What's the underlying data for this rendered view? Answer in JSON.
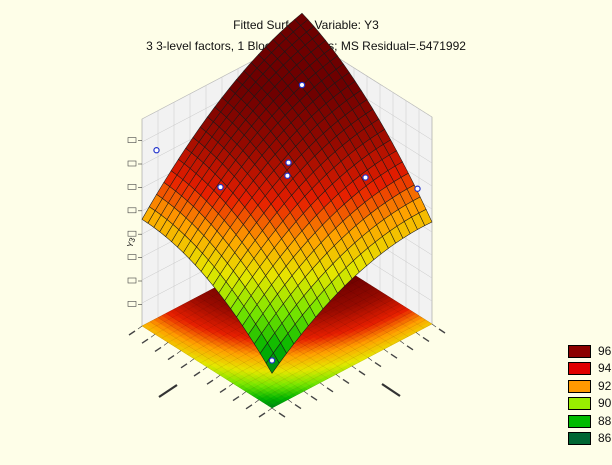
{
  "chart_data": {
    "type": "surface3d",
    "title": "Fitted Surface; Variable: Y3",
    "subtitle": "3 3-level factors, 1 Blocks, 17 Runs; MS Residual=.5471992",
    "dv_label": "DV: Y3",
    "zlabel": "Y3",
    "grid": true,
    "legend_position": "right-bottom",
    "legend": [
      {
        "label": "96",
        "color": "#8b0000"
      },
      {
        "label": "94",
        "color": "#e00000"
      },
      {
        "label": "92",
        "color": "#ff9900"
      },
      {
        "label": "90",
        "color": "#99ee00"
      },
      {
        "label": "88",
        "color": "#00bb00"
      },
      {
        "label": "86",
        "color": "#006633"
      }
    ],
    "surface_zlim": [
      86,
      97
    ],
    "observed_points_z": [
      96.7,
      95.4,
      95.2,
      93.6,
      93.9,
      91.8,
      92.4,
      87.8
    ]
  }
}
